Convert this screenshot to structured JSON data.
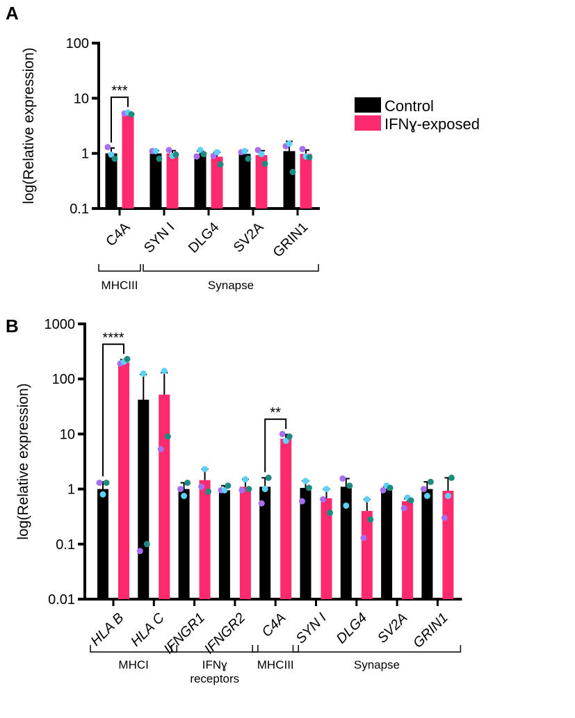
{
  "colors": {
    "control": "#000000",
    "ifn": "#ff2a6d",
    "purple": "#a66ef0",
    "cyan": "#5dd0f5",
    "teal": "#1f8a80"
  },
  "legend": {
    "control": "Control",
    "ifn": "IFNɣ-exposed"
  },
  "chart_data": [
    {
      "type": "bar",
      "panel": "A",
      "title": "",
      "ylabel": "log(Relative expression)",
      "yscale": "log",
      "ylim": [
        0.1,
        100
      ],
      "yticks": [
        "0.1",
        "1",
        "10",
        "100"
      ],
      "italic_categories": false,
      "categories": [
        "C4A",
        "SYN I",
        "DLG4",
        "SV2A",
        "GRIN1"
      ],
      "series": [
        {
          "name": "Control",
          "values": [
            1.0,
            1.0,
            0.98,
            0.98,
            1.1
          ],
          "err_upper": [
            1.25,
            1.12,
            1.1,
            1.12,
            1.65
          ],
          "points": [
            [
              1.3,
              0.95,
              0.8
            ],
            [
              1.1,
              1.1,
              0.8
            ],
            [
              0.88,
              1.15,
              0.97
            ],
            [
              1.05,
              1.1,
              0.8
            ],
            [
              1.35,
              1.5,
              0.46
            ]
          ]
        },
        {
          "name": "IFNɣ-exposed",
          "values": [
            5.2,
            1.0,
            0.87,
            0.93,
            0.98
          ],
          "err_upper": [
            5.5,
            1.12,
            1.05,
            1.12,
            1.15
          ],
          "points": [
            [
              5.3,
              5.5,
              5.1
            ],
            [
              1.15,
              0.9,
              0.95
            ],
            [
              0.9,
              1.05,
              0.63
            ],
            [
              1.15,
              0.97,
              0.65
            ],
            [
              1.2,
              0.88,
              0.85
            ]
          ]
        }
      ],
      "groups": [
        {
          "label": "MHCIII",
          "from": 0,
          "to": 0
        },
        {
          "label": "Synapse",
          "from": 1,
          "to": 4
        }
      ],
      "significance": [
        {
          "category": 0,
          "label": "***"
        }
      ]
    },
    {
      "type": "bar",
      "panel": "B",
      "title": "",
      "ylabel": "log(Relative expression)",
      "yscale": "log",
      "ylim": [
        0.01,
        1000
      ],
      "yticks": [
        "0.01",
        "0.1",
        "1",
        "10",
        "100",
        "1000"
      ],
      "italic_categories": true,
      "categories": [
        "HLA B",
        "HLA C",
        "IFNGR1",
        "IFNGR2",
        "C4A",
        "SYN I",
        "DLG4",
        "SV2A",
        "GRIN1"
      ],
      "series": [
        {
          "name": "Control",
          "values": [
            1.0,
            42,
            1.0,
            0.95,
            1.1,
            1.05,
            1.1,
            0.95,
            1.0
          ],
          "err_upper": [
            1.35,
            120,
            1.3,
            1.15,
            1.6,
            1.4,
            1.55,
            1.1,
            1.35
          ],
          "points": [
            [
              1.3,
              0.8,
              1.3
            ],
            [
              0.075,
              125,
              0.1
            ],
            [
              1.0,
              0.75,
              1.3
            ],
            [
              0.95,
              0.95,
              1.15
            ],
            [
              0.55,
              1.0,
              1.6
            ],
            [
              0.6,
              1.4,
              1.05
            ],
            [
              1.55,
              0.5,
              1.15
            ],
            [
              0.95,
              1.15,
              1.05
            ],
            [
              1.0,
              0.75,
              1.35
            ]
          ]
        },
        {
          "name": "IFNɣ-exposed",
          "values": [
            200,
            52,
            1.45,
            1.1,
            8.2,
            0.68,
            0.4,
            0.6,
            0.93
          ],
          "err_upper": [
            225,
            130,
            2.3,
            1.5,
            9.8,
            1.0,
            0.65,
            0.67,
            1.6
          ],
          "points": [
            [
              190,
              205,
              230
            ],
            [
              5.3,
              140,
              9
            ],
            [
              1.1,
              2.3,
              0.9
            ],
            [
              0.95,
              1.5,
              1.0
            ],
            [
              10,
              7.5,
              9
            ],
            [
              0.65,
              1.0,
              0.37
            ],
            [
              0.13,
              0.65,
              0.28
            ],
            [
              0.45,
              0.7,
              0.62
            ],
            [
              0.3,
              0.75,
              1.6
            ]
          ]
        }
      ],
      "groups": [
        {
          "label": "MHCI",
          "from": 0,
          "to": 1
        },
        {
          "label": "IFNɣ receptors",
          "from": 2,
          "to": 3
        },
        {
          "label": "MHCIII",
          "from": 4,
          "to": 4
        },
        {
          "label": "Synapse",
          "from": 5,
          "to": 8
        }
      ],
      "significance": [
        {
          "category": 0,
          "label": "****"
        },
        {
          "category": 4,
          "label": "**"
        }
      ]
    }
  ]
}
